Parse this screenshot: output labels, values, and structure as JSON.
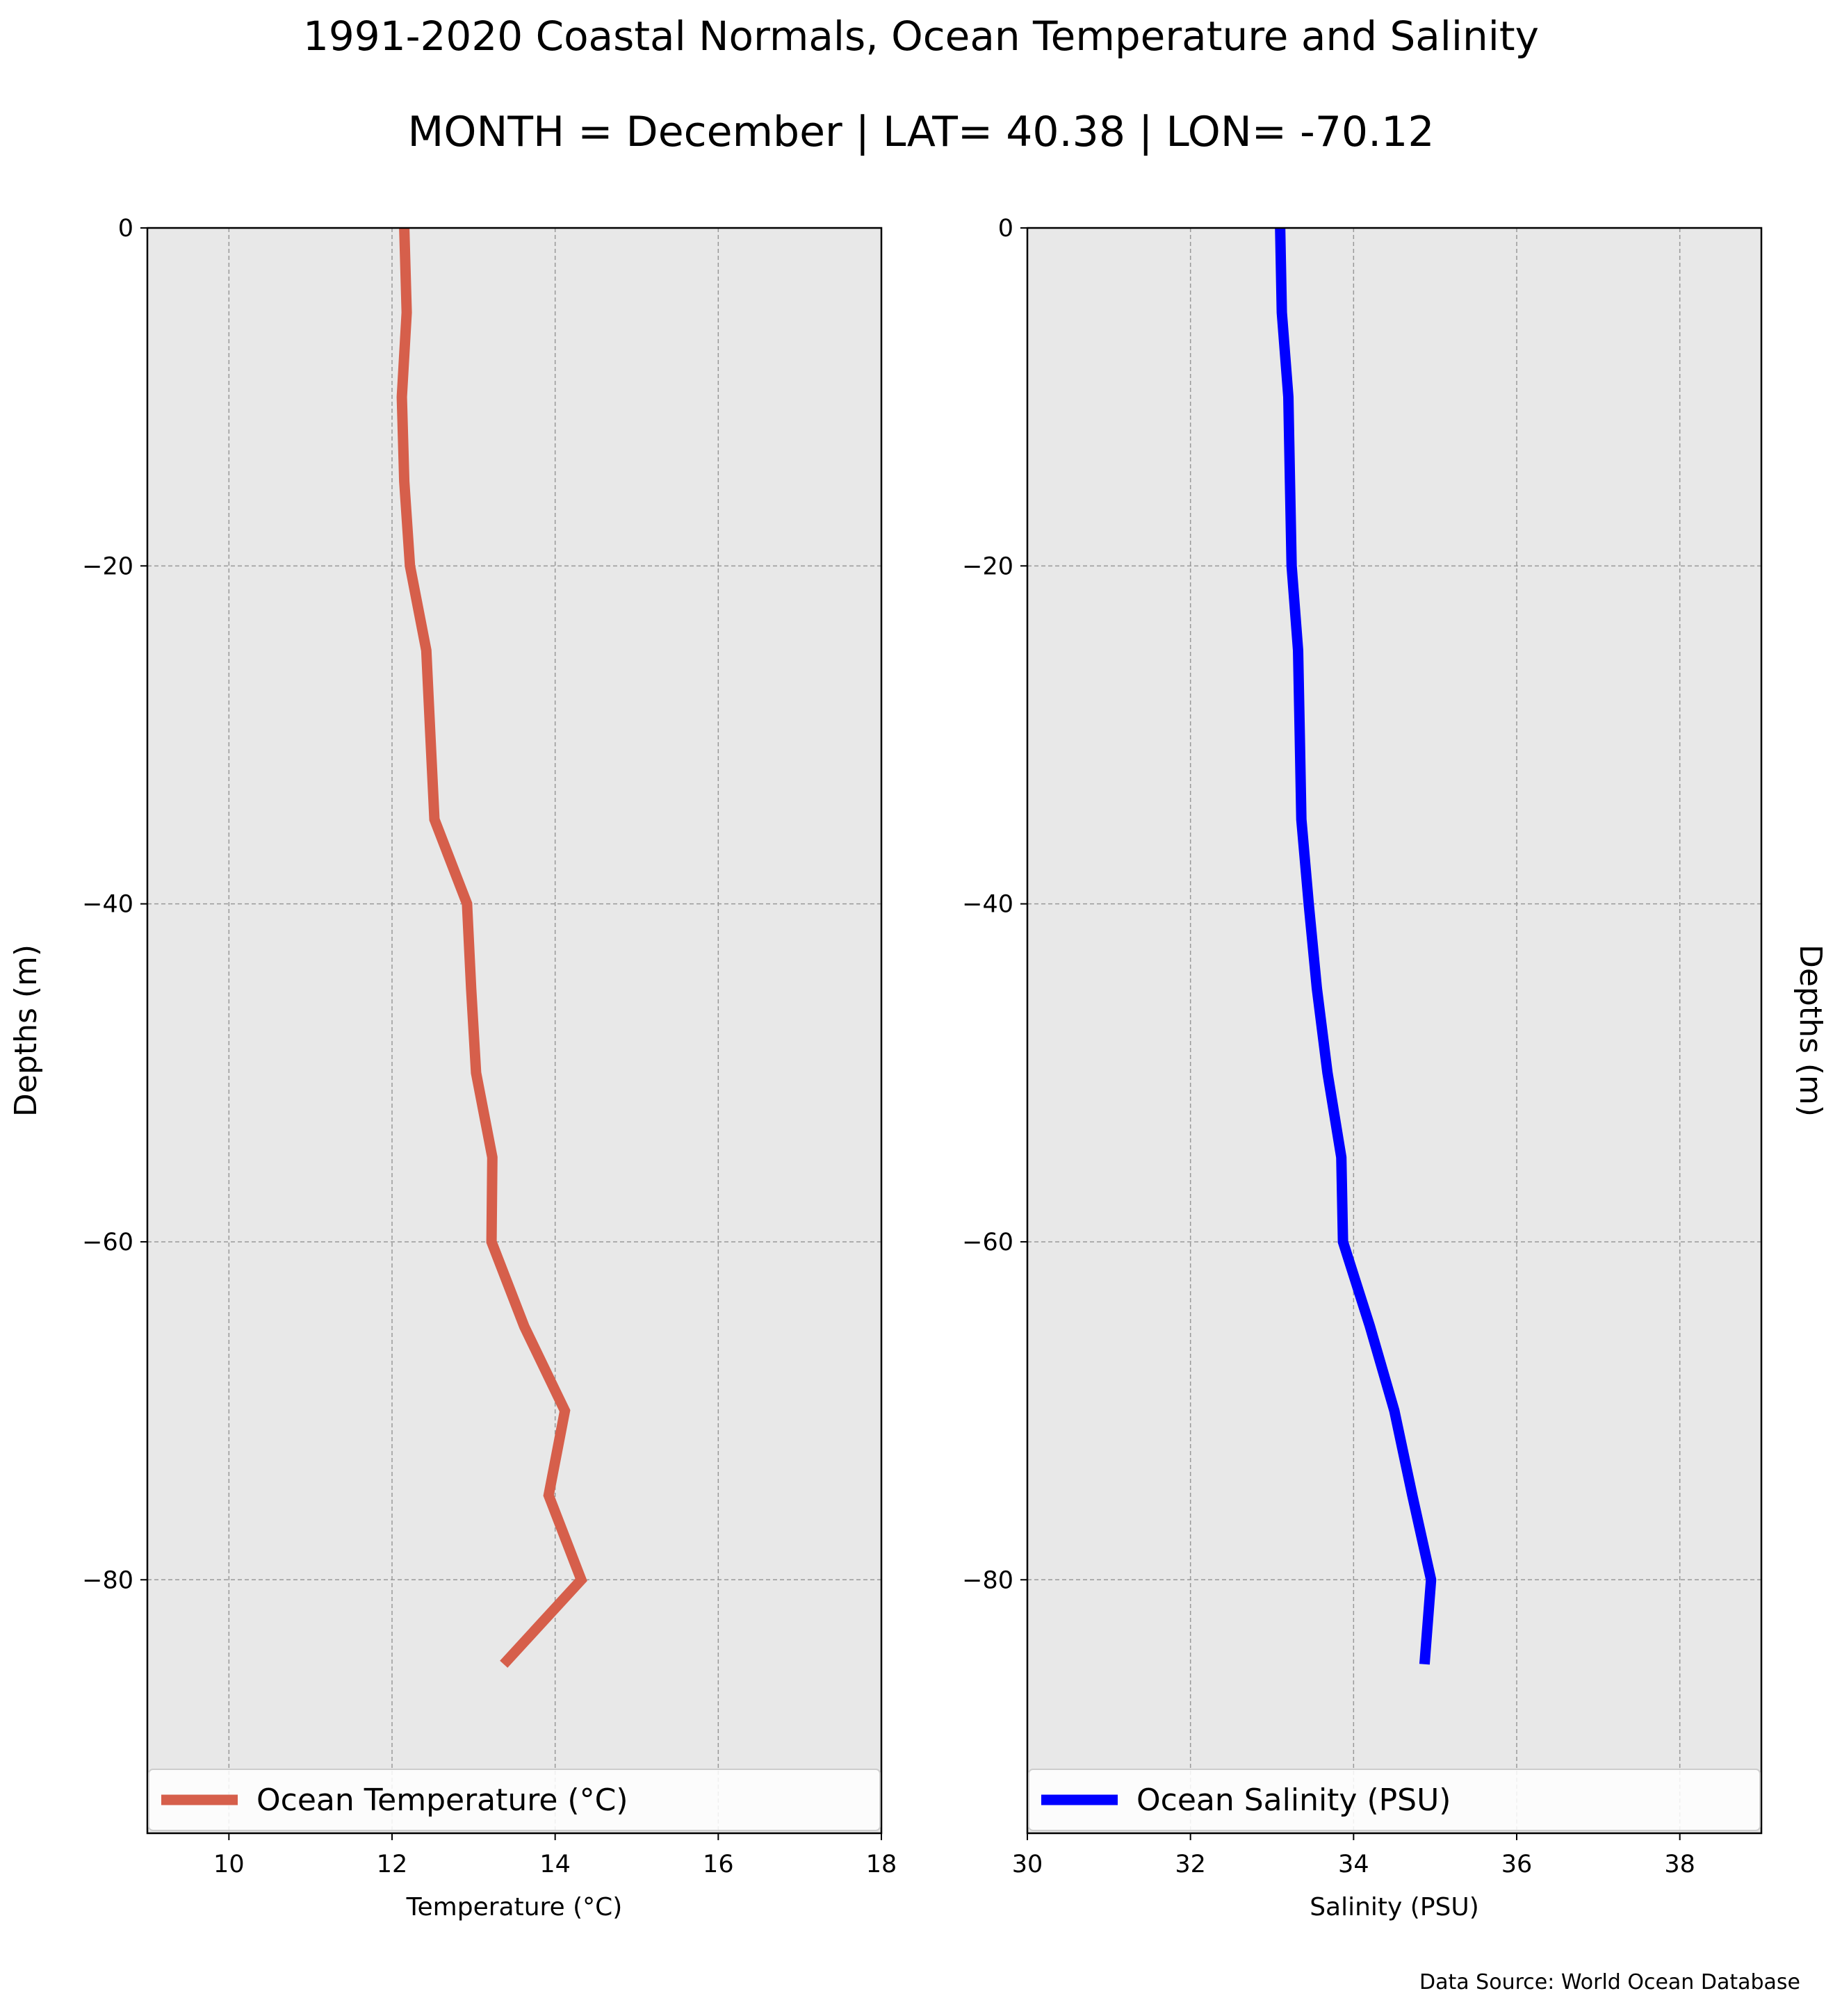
{
  "title": "1991-2020 Coastal Normals, Ocean Temperature and Salinity",
  "subtitle": "MONTH = December | LAT= 40.38 | LON= -70.12",
  "source": "Data Source: World Ocean Database",
  "colors": {
    "temperature": "#d65f4b",
    "salinity": "#0000ff",
    "panel_bg": "#e8e8e8",
    "grid": "#999999"
  },
  "chart_data": [
    {
      "type": "line",
      "xlabel": "Temperature (°C)",
      "ylabel": "Depths (m)",
      "xlim": [
        9,
        18
      ],
      "ylim": [
        -95,
        0
      ],
      "xticks": [
        10,
        12,
        14,
        16,
        18
      ],
      "xtick_labels": [
        "10",
        "12",
        "14",
        "16",
        "18"
      ],
      "yticks": [
        0,
        -20,
        -40,
        -60,
        -80
      ],
      "ytick_labels": [
        "0",
        "−20",
        "−40",
        "−60",
        "−80"
      ],
      "grid": true,
      "legend": "bottom",
      "series": [
        {
          "name": "Ocean Temperature (°C)",
          "color": "#d65f4b",
          "x": [
            12.15,
            12.18,
            12.12,
            12.15,
            12.22,
            12.42,
            12.47,
            12.52,
            12.92,
            12.97,
            13.03,
            13.23,
            13.22,
            13.62,
            14.12,
            13.92,
            14.32,
            13.37
          ],
          "y": [
            0,
            -5,
            -10,
            -15,
            -20,
            -25,
            -30,
            -35,
            -40,
            -45,
            -50,
            -55,
            -60,
            -65,
            -70,
            -75,
            -80,
            -85
          ]
        }
      ]
    },
    {
      "type": "line",
      "xlabel": "Salinity (PSU)",
      "ylabel": "Depths (m)",
      "xlim": [
        30,
        39
      ],
      "ylim": [
        -95,
        0
      ],
      "xticks": [
        30,
        32,
        34,
        36,
        38
      ],
      "xtick_labels": [
        "30",
        "32",
        "34",
        "36",
        "38"
      ],
      "yticks": [
        0,
        -20,
        -40,
        -60,
        -80
      ],
      "ytick_labels": [
        "0",
        "−20",
        "−40",
        "−60",
        "−80"
      ],
      "grid": true,
      "legend": "bottom",
      "series": [
        {
          "name": "Ocean Salinity (PSU)",
          "color": "#0000ff",
          "x": [
            33.1,
            33.12,
            33.2,
            33.22,
            33.24,
            33.32,
            33.34,
            33.36,
            33.45,
            33.55,
            33.68,
            33.85,
            33.87,
            34.2,
            34.5,
            34.72,
            34.95,
            34.87
          ],
          "y": [
            0,
            -5,
            -10,
            -15,
            -20,
            -25,
            -30,
            -35,
            -40,
            -45,
            -50,
            -55,
            -60,
            -65,
            -70,
            -75,
            -80,
            -85
          ]
        }
      ]
    }
  ]
}
